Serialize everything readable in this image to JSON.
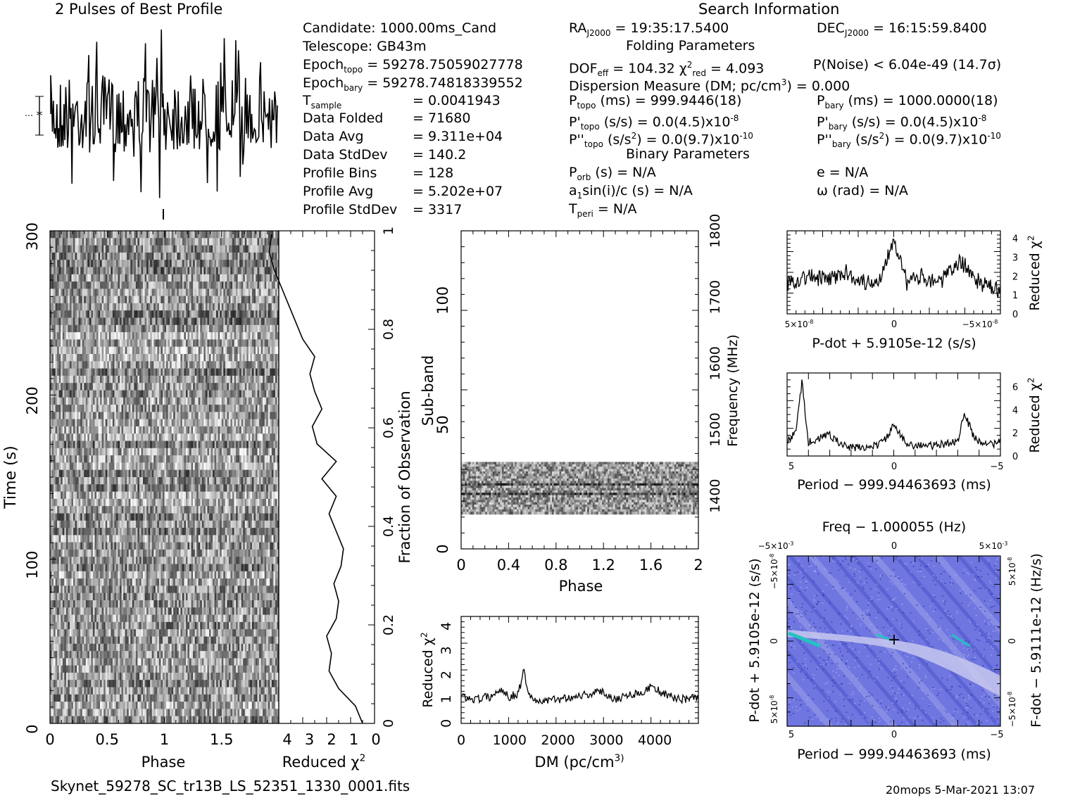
{
  "header": {
    "profile_title": "2 Pulses of Best Profile",
    "search_title": "Search Information",
    "folding_title": "Folding Parameters",
    "binary_title": "Binary Parameters"
  },
  "info": {
    "candidate": "Candidate:  1000.00ms_Cand",
    "telescope": "Telescope:  GB43m",
    "epoch_topo": "Epoch",
    "epoch_topo_sub": "topo",
    "epoch_topo_val": " = 59278.75059027778",
    "epoch_bary": "Epoch",
    "epoch_bary_sub": "bary",
    "epoch_bary_val": " = 59278.74818339552",
    "tsample": "T",
    "tsample_sub": "sample",
    "tsample_val": "=  0.0041943",
    "rows": [
      {
        "label": "Data Folded",
        "value": "=  71680"
      },
      {
        "label": "Data Avg",
        "value": "=  9.311e+04"
      },
      {
        "label": "Data StdDev",
        "value": "=  140.2"
      },
      {
        "label": "Profile Bins",
        "value": "=  128"
      },
      {
        "label": "Profile Avg",
        "value": "=  5.202e+07"
      },
      {
        "label": "Profile StdDev",
        "value": "=  3317"
      }
    ]
  },
  "search": {
    "ra": "RA",
    "ra_sub": "J2000",
    "ra_val": " = 19:35:17.5400",
    "dec": "DEC",
    "dec_sub": "J2000",
    "dec_val": " = 16:15:59.8400",
    "dof": "DOF",
    "dof_sub": "eff",
    "dof_val": " = 104.32  ",
    "chi": "χ",
    "chi_sup": "2",
    "chi_sub": "red",
    "chi_val": " = 4.093",
    "pnoise": "P(Noise) < 6.04e-49  (14.7σ)",
    "dm_a": "Dispersion Measure (DM; pc/cm",
    "dm_sup": "3",
    "dm_b": ") = 0.000",
    "ptopo": "P",
    "ptopo_sub": "topo",
    "ptopo_val": " (ms) =  999.9446(18)",
    "pbary": "P",
    "pbary_sub": "bary",
    "pbary_val": " (ms) =  1000.0000(18)",
    "pdtopo": "P'",
    "pdtopo_sub": "topo",
    "pdtopo_val": " (s/s) = 0.0(4.5)x10",
    "pdtopo_sup": "-8",
    "pdbary": "P'",
    "pdbary_sub": "bary",
    "pdbary_val": " (s/s) = 0.0(4.5)x10",
    "pdbary_sup": "-8",
    "pddtopo": "P''",
    "pddtopo_sub": "topo",
    "pddtopo_val": " (s/s",
    "pddtopo_sup1": "2",
    "pddtopo_val2": ") = 0.0(9.7)x10",
    "pddtopo_sup2": "-10",
    "pddbary": "P''",
    "pddbary_sub": "bary",
    "pddbary_val": " (s/s",
    "pddbary_sup1": "2",
    "pddbary_val2": ") = 0.0(9.7)x10",
    "pddbary_sup2": "-10",
    "porb": "P",
    "porb_sub": "orb",
    "porb_val": " (s) = N/A",
    "ecc": "e = N/A",
    "asini": "a",
    "asini_sub": "1",
    "asini_val": "sin(i)/c (s) = N/A",
    "omega": "ω (rad) = N/A",
    "tperi": "T",
    "tperi_sub": "peri",
    "tperi_val": " = N/A"
  },
  "footer": {
    "filename": "Skynet_59278_SC_tr13B_LS_52351_1330_0001.fits",
    "stamp": "20mops  5-Mar-2021 13:07"
  },
  "colors": {
    "ink": "#000000",
    "grey_mid": "#8a8a8a",
    "ppdot_bg": "#6f76e0",
    "ppdot_light": "#c8c8ee",
    "ppdot_hot": "#22c4c0"
  },
  "chart_data": [
    {
      "type": "line",
      "name": "profile",
      "title": "2 Pulses of Best Profile",
      "x": [
        0,
        2
      ],
      "description_series": "noisy folded profile over two pulses"
    },
    {
      "type": "heatmap",
      "name": "time-phase",
      "xlabel": "Phase",
      "ylabel": "Time (s)",
      "xlim": [
        0,
        2
      ],
      "ylim": [
        0,
        300
      ],
      "x_ticks": [
        "0",
        "0.5",
        "1",
        "1.5"
      ],
      "y_ticks": [
        "0",
        "100",
        "200",
        "300"
      ]
    },
    {
      "type": "line",
      "name": "time-chi",
      "xlabel": "Reduced χ",
      "xlabel_sup": "2",
      "ylabel": "Fraction of Observation",
      "xlim": [
        4,
        0
      ],
      "ylim": [
        0,
        1
      ],
      "x_ticks": [
        "4",
        "3",
        "2",
        "1",
        "0"
      ],
      "y_ticks": [
        "0",
        "0.2",
        "0.4",
        "0.6",
        "0.8",
        "1"
      ],
      "chi": [
        0.5,
        0.8,
        1.5,
        1.9,
        1.8,
        2.0,
        1.6,
        1.5,
        1.7,
        1.4,
        1.3,
        1.6,
        1.9,
        1.6,
        2.2,
        1.6,
        2.4,
        2.6,
        2.2,
        2.5,
        2.7,
        2.5,
        3.0,
        3.3,
        3.6,
        3.9,
        4.2,
        4.4,
        4.3
      ]
    },
    {
      "type": "heatmap",
      "name": "subband-phase",
      "xlabel": "Phase",
      "ylabel": "Sub-band",
      "ylabel_right": "Frequency (MHz)",
      "xlim": [
        0,
        2
      ],
      "ylim": [
        0,
        128
      ],
      "x_ticks": [
        "0",
        "0.4",
        "0.8",
        "1.2",
        "1.6",
        "2"
      ],
      "y_ticks": [
        "0",
        "50",
        "100"
      ],
      "y_ticks_right": [
        "1400",
        "1500",
        "1600",
        "1700",
        "1800"
      ],
      "band_range": [
        14,
        35
      ]
    },
    {
      "type": "line",
      "name": "dm-chi",
      "xlabel": "DM (pc/cm",
      "xlabel_sup": "3",
      "ylabel": "Reduced χ",
      "ylabel_sup": "2",
      "xlim": [
        0,
        4900
      ],
      "ylim": [
        0,
        4.4
      ],
      "x_ticks": [
        "0",
        "1000",
        "2000",
        "3000",
        "4000"
      ],
      "y_ticks": [
        "0",
        "1",
        "2",
        "3",
        "4"
      ],
      "x": [
        0,
        300,
        600,
        850,
        1000,
        1150,
        1250,
        1300,
        1350,
        1450,
        1700,
        2000,
        2300,
        2600,
        2900,
        3200,
        3500,
        3800,
        3950,
        4100,
        4300,
        4600,
        4900
      ],
      "y": [
        1.1,
        1.0,
        1.1,
        1.4,
        1.1,
        1.2,
        1.7,
        2.3,
        1.6,
        1.0,
        0.9,
        1.0,
        1.1,
        1.2,
        1.3,
        1.0,
        1.2,
        1.3,
        1.6,
        1.3,
        1.1,
        1.0,
        1.1
      ]
    },
    {
      "type": "line",
      "name": "pdot-chi",
      "xlabel": "P-dot + 5.9105e-12 (s/s)",
      "ylabel": "Reduced χ",
      "ylabel_sup": "2",
      "xlim": [
        8e-08,
        -8e-08
      ],
      "ylim": [
        0,
        4.4
      ],
      "x_ticks": [
        "5×10",
        "0",
        "−5×10"
      ],
      "x_ticks_sup": "-8",
      "y_ticks": [
        "0",
        "1",
        "2",
        "3",
        "4"
      ],
      "x": [
        8e-08,
        6.5e-08,
        5e-08,
        3.5e-08,
        2e-08,
        1e-08,
        0,
        -1e-08,
        -2e-08,
        -3.5e-08,
        -4.5e-08,
        -5e-08,
        -6.5e-08,
        -8e-08
      ],
      "y": [
        1.6,
        2.0,
        1.8,
        2.2,
        1.6,
        1.9,
        4.1,
        1.6,
        2.0,
        1.7,
        2.4,
        2.8,
        1.6,
        1.2
      ]
    },
    {
      "type": "line",
      "name": "period-chi",
      "xlabel": "Period − 999.94463693 (ms)",
      "ylabel": "Reduced χ",
      "ylabel_sup": "2",
      "xlim": [
        5,
        -5
      ],
      "ylim": [
        0,
        7.2
      ],
      "x_ticks": [
        "5",
        "0",
        "−5"
      ],
      "y_ticks": [
        "0",
        "2",
        "4",
        "6"
      ],
      "x": [
        5,
        4.6,
        4.3,
        4.0,
        3.5,
        3.0,
        2.5,
        2.0,
        1.0,
        0.5,
        0,
        -0.5,
        -1.0,
        -2.0,
        -3.0,
        -3.3,
        -3.8,
        -4.5,
        -5
      ],
      "y": [
        1.2,
        2.0,
        6.5,
        1.2,
        1.5,
        1.9,
        1.0,
        0.7,
        0.8,
        1.2,
        2.6,
        1.3,
        0.9,
        0.9,
        1.3,
        3.7,
        1.5,
        1.0,
        1.2
      ]
    },
    {
      "type": "heatmap",
      "name": "ppdot-plane",
      "title": "Freq − 1.000055 (Hz)",
      "xlabel": "Period − 999.94463693 (ms)",
      "ylabel": "P-dot + 5.9105e-12 (s/s)",
      "ylabel_right": "F-dot − 5.9111e-12 (Hz/s)",
      "xlim": [
        5,
        -5
      ],
      "x_ticks": [
        "5",
        "0",
        "−5"
      ],
      "x_ticks_top": [
        "−5×10",
        "0",
        "5×10"
      ],
      "x_ticks_top_sup": "-3",
      "y_ticks": [
        "5×10",
        "0",
        "−5×10"
      ],
      "y_ticks_sup": "-8",
      "y_ticks_right": [
        "−5×10",
        "0",
        "5×10"
      ],
      "y_ticks_right_sup": "-8"
    }
  ]
}
